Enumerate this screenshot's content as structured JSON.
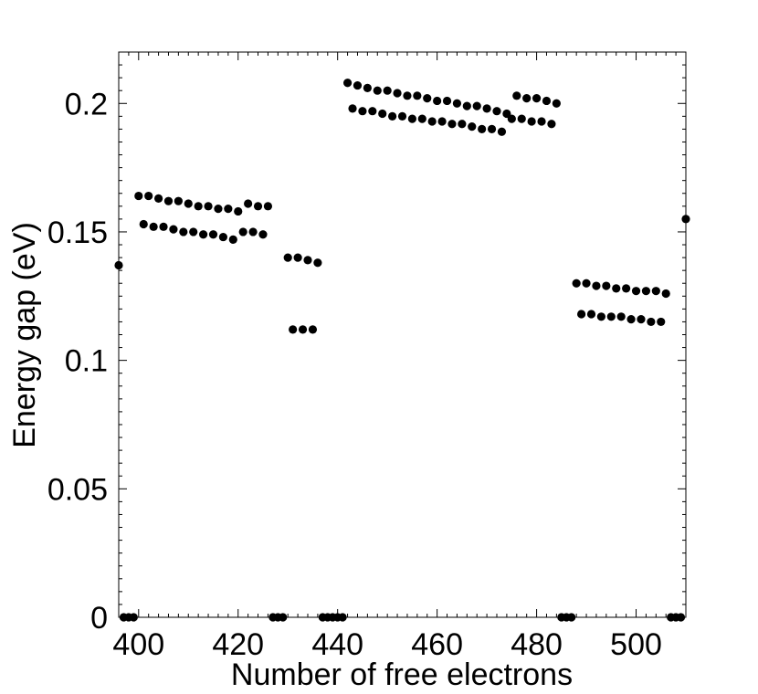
{
  "chart_data": {
    "type": "scatter",
    "xlabel": "Number of free electrons",
    "ylabel": "Energy gap (eV)",
    "xlim": [
      396,
      510
    ],
    "ylim": [
      0,
      0.22
    ],
    "xticks": [
      400,
      420,
      440,
      460,
      480,
      500
    ],
    "yticks": [
      0,
      0.05,
      0.1,
      0.15,
      0.2
    ],
    "ytick_labels": [
      "0",
      "0.05",
      "0.1",
      "0.15",
      "0.2"
    ],
    "grid": false,
    "marker_color": "#000000",
    "points": [
      [
        396,
        0.137
      ],
      [
        397,
        0
      ],
      [
        398,
        0
      ],
      [
        399,
        0
      ],
      [
        400,
        0.164
      ],
      [
        401,
        0.153
      ],
      [
        402,
        0.164
      ],
      [
        403,
        0.152
      ],
      [
        404,
        0.163
      ],
      [
        405,
        0.152
      ],
      [
        406,
        0.162
      ],
      [
        407,
        0.151
      ],
      [
        408,
        0.162
      ],
      [
        409,
        0.15
      ],
      [
        410,
        0.161
      ],
      [
        411,
        0.15
      ],
      [
        412,
        0.16
      ],
      [
        413,
        0.149
      ],
      [
        414,
        0.16
      ],
      [
        415,
        0.149
      ],
      [
        416,
        0.159
      ],
      [
        417,
        0.148
      ],
      [
        418,
        0.159
      ],
      [
        419,
        0.147
      ],
      [
        420,
        0.158
      ],
      [
        421,
        0.15
      ],
      [
        422,
        0.161
      ],
      [
        423,
        0.15
      ],
      [
        424,
        0.16
      ],
      [
        425,
        0.149
      ],
      [
        426,
        0.16
      ],
      [
        427,
        0
      ],
      [
        428,
        0
      ],
      [
        429,
        0
      ],
      [
        430,
        0.14
      ],
      [
        431,
        0.112
      ],
      [
        432,
        0.14
      ],
      [
        433,
        0.112
      ],
      [
        434,
        0.139
      ],
      [
        435,
        0.112
      ],
      [
        436,
        0.138
      ],
      [
        437,
        0
      ],
      [
        438,
        0
      ],
      [
        439,
        0
      ],
      [
        440,
        0
      ],
      [
        441,
        0
      ],
      [
        442,
        0.208
      ],
      [
        443,
        0.198
      ],
      [
        444,
        0.207
      ],
      [
        445,
        0.197
      ],
      [
        446,
        0.206
      ],
      [
        447,
        0.197
      ],
      [
        448,
        0.205
      ],
      [
        449,
        0.196
      ],
      [
        450,
        0.205
      ],
      [
        451,
        0.195
      ],
      [
        452,
        0.204
      ],
      [
        453,
        0.195
      ],
      [
        454,
        0.203
      ],
      [
        455,
        0.194
      ],
      [
        456,
        0.203
      ],
      [
        457,
        0.194
      ],
      [
        458,
        0.202
      ],
      [
        459,
        0.193
      ],
      [
        460,
        0.201
      ],
      [
        461,
        0.193
      ],
      [
        462,
        0.201
      ],
      [
        463,
        0.192
      ],
      [
        464,
        0.2
      ],
      [
        465,
        0.192
      ],
      [
        466,
        0.199
      ],
      [
        467,
        0.191
      ],
      [
        468,
        0.199
      ],
      [
        469,
        0.19
      ],
      [
        470,
        0.198
      ],
      [
        471,
        0.19
      ],
      [
        472,
        0.197
      ],
      [
        473,
        0.189
      ],
      [
        474,
        0.196
      ],
      [
        475,
        0.194
      ],
      [
        476,
        0.203
      ],
      [
        477,
        0.194
      ],
      [
        478,
        0.202
      ],
      [
        479,
        0.193
      ],
      [
        480,
        0.202
      ],
      [
        481,
        0.193
      ],
      [
        482,
        0.201
      ],
      [
        483,
        0.192
      ],
      [
        484,
        0.2
      ],
      [
        485,
        0
      ],
      [
        486,
        0
      ],
      [
        487,
        0
      ],
      [
        488,
        0.13
      ],
      [
        489,
        0.118
      ],
      [
        490,
        0.13
      ],
      [
        491,
        0.118
      ],
      [
        492,
        0.129
      ],
      [
        493,
        0.117
      ],
      [
        494,
        0.129
      ],
      [
        495,
        0.117
      ],
      [
        496,
        0.128
      ],
      [
        497,
        0.117
      ],
      [
        498,
        0.128
      ],
      [
        499,
        0.116
      ],
      [
        500,
        0.127
      ],
      [
        501,
        0.116
      ],
      [
        502,
        0.127
      ],
      [
        503,
        0.115
      ],
      [
        504,
        0.127
      ],
      [
        505,
        0.115
      ],
      [
        506,
        0.126
      ],
      [
        507,
        0
      ],
      [
        508,
        0
      ],
      [
        509,
        0
      ],
      [
        510,
        0.155
      ]
    ]
  }
}
